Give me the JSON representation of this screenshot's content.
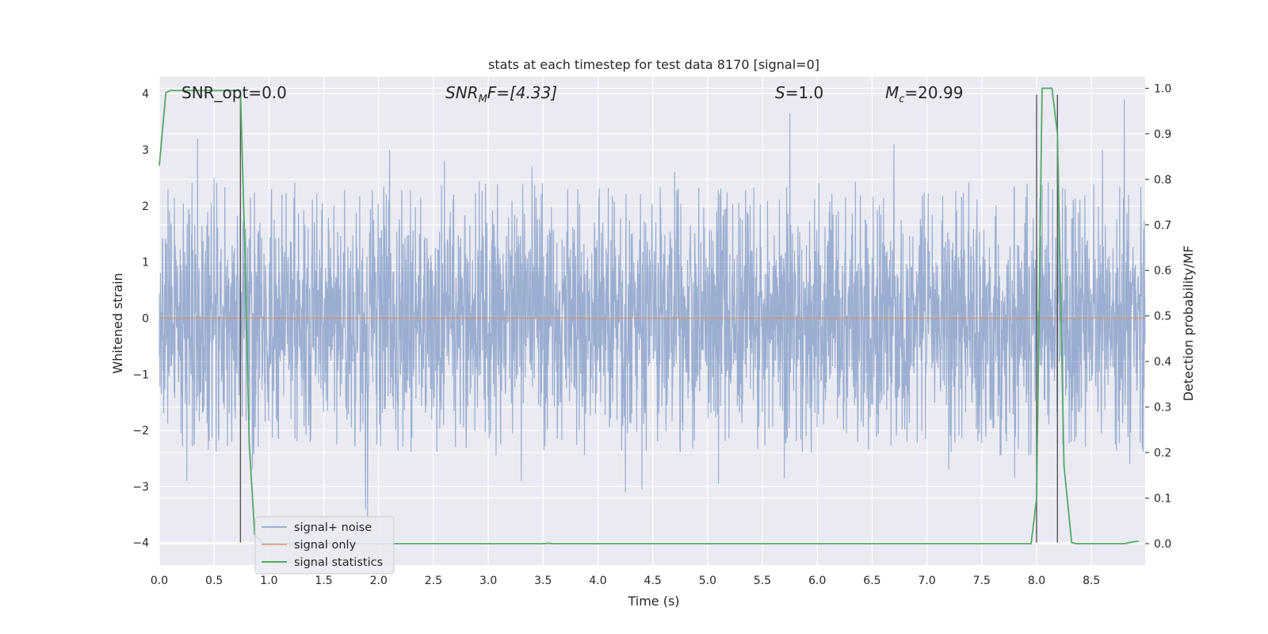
{
  "chart_data": {
    "type": "line",
    "title": "stats at each timestep for test data 8170 [signal=0]",
    "xlabel": "Time (s)",
    "ylabel_left": "Whitened strain",
    "ylabel_right": "Detection probability/MF",
    "xlim": [
      0.0,
      8.99
    ],
    "ylim_left": [
      -4.4,
      4.3
    ],
    "ylim_right": [
      -0.047,
      1.025
    ],
    "x_ticks": [
      "0.0",
      "0.5",
      "1.0",
      "1.5",
      "2.0",
      "2.5",
      "3.0",
      "3.5",
      "4.0",
      "4.5",
      "5.0",
      "5.5",
      "6.0",
      "6.5",
      "7.0",
      "7.5",
      "8.0",
      "8.5"
    ],
    "y_ticks_left": [
      "4",
      "3",
      "2",
      "1",
      "0",
      "−1",
      "−2",
      "−3",
      "−4"
    ],
    "y_ticks_right": [
      "1.0",
      "0.9",
      "0.8",
      "0.7",
      "0.6",
      "0.5",
      "0.4",
      "0.3",
      "0.2",
      "0.1",
      "0.0"
    ],
    "grid": true,
    "legend_placement": "lower-left",
    "annotations": {
      "snr_opt": "SNR_opt=0.0",
      "snr_mf_pre": "SNR",
      "snr_mf_sub": "M",
      "snr_mf_post": "F=[4.33]",
      "s_var": "S",
      "s_val": "=1.0",
      "mc_var": "M",
      "mc_sub": "c",
      "mc_val": "=20.99"
    },
    "series": [
      {
        "name": "signal+ noise",
        "axis": "left",
        "color": "#4c72b0",
        "noise_seed": 8170,
        "peaks_high": [
          [
            0.08,
            2.3
          ],
          [
            0.35,
            3.2
          ],
          [
            0.5,
            2.5
          ],
          [
            1.12,
            2.2
          ],
          [
            2.1,
            3.0
          ],
          [
            2.6,
            2.8
          ],
          [
            3.4,
            2.7
          ],
          [
            4.7,
            2.6
          ],
          [
            5.75,
            3.65
          ],
          [
            6.7,
            3.1
          ],
          [
            8.2,
            2.7
          ],
          [
            8.6,
            3.0
          ],
          [
            8.8,
            3.9
          ]
        ],
        "peaks_low": [
          [
            0.25,
            -2.9
          ],
          [
            0.85,
            -2.7
          ],
          [
            1.88,
            -3.4
          ],
          [
            1.9,
            -3.65
          ],
          [
            3.3,
            -2.9
          ],
          [
            4.25,
            -3.1
          ],
          [
            4.4,
            -3.05
          ],
          [
            5.1,
            -2.95
          ],
          [
            5.7,
            -2.85
          ],
          [
            7.2,
            -2.7
          ],
          [
            7.8,
            -2.85
          ],
          [
            8.85,
            -2.6
          ]
        ]
      },
      {
        "name": "signal only",
        "axis": "left",
        "color": "#dd8452",
        "x": [
          0.0,
          8.99
        ],
        "y": [
          0.0,
          0.0
        ]
      },
      {
        "name": "signal statistics",
        "axis": "right",
        "color": "#55a868",
        "x": [
          0.0,
          0.06,
          0.1,
          0.2,
          0.4,
          0.6,
          0.7,
          0.74,
          0.78,
          0.82,
          0.87,
          0.95,
          3.5,
          3.55,
          3.6,
          7.95,
          8.0,
          8.05,
          8.1,
          8.14,
          8.19,
          8.25,
          8.32,
          8.37,
          8.8,
          8.88,
          8.93
        ],
        "y": [
          0.83,
          0.99,
          0.995,
          0.995,
          0.995,
          0.995,
          0.995,
          0.995,
          0.65,
          0.22,
          0.02,
          0.0,
          0.0,
          0.001,
          0.0,
          0.0,
          0.1,
          1.0,
          1.0,
          1.0,
          0.9,
          0.17,
          0.002,
          0.0,
          0.0,
          0.004,
          0.005
        ]
      }
    ],
    "markers": {
      "color": "#555555",
      "x": [
        0.74,
        8.0,
        8.19
      ],
      "ymin": -4.0,
      "ymax": 3.98
    }
  }
}
